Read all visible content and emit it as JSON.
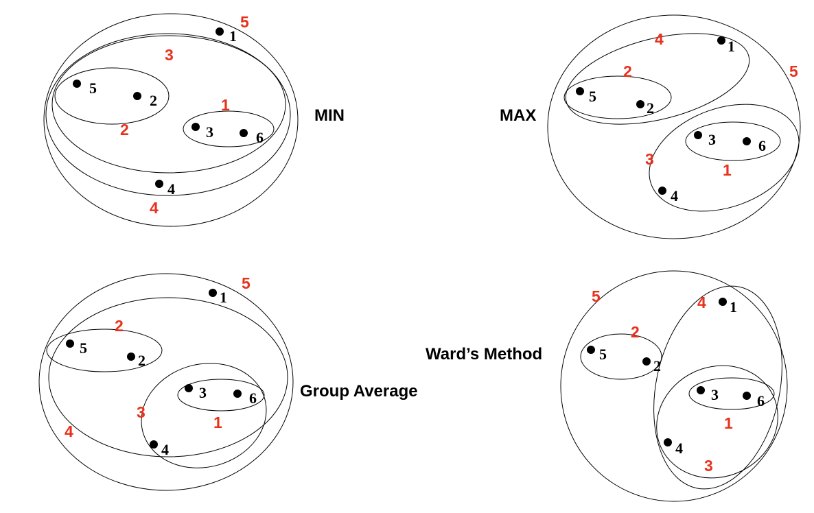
{
  "colors": {
    "merge_order": "#e8311c",
    "ink": "#000000"
  },
  "panels": {
    "min": {
      "method": "MIN",
      "points": [
        "1",
        "5",
        "2",
        "3",
        "6",
        "4"
      ],
      "merge_order": [
        "5",
        "3",
        "2",
        "1",
        "4"
      ]
    },
    "max": {
      "method": "MAX",
      "points": [
        "1",
        "5",
        "2",
        "3",
        "6",
        "4"
      ],
      "merge_order": [
        "4",
        "2",
        "5",
        "3",
        "1"
      ]
    },
    "group_average": {
      "method": "Group Average",
      "points": [
        "1",
        "5",
        "2",
        "3",
        "6",
        "4"
      ],
      "merge_order": [
        "5",
        "2",
        "3",
        "1",
        "4"
      ]
    },
    "ward": {
      "method": "Ward’s Method",
      "points": [
        "1",
        "5",
        "2",
        "3",
        "6",
        "4"
      ],
      "merge_order": [
        "5",
        "4",
        "2",
        "1",
        "3"
      ]
    }
  }
}
